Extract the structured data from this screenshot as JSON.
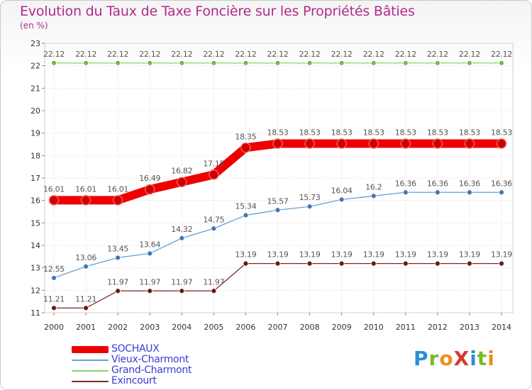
{
  "header": {
    "title": "Evolution du Taux de Taxe Foncière sur les Propriétés Bâties",
    "unit": "(en %)"
  },
  "brand": {
    "text": "ProXiti",
    "letters": [
      "P",
      "r",
      "o",
      "X",
      "i",
      "t",
      "i"
    ],
    "letter_colors": [
      "#2b8fd6",
      "#7ab82a",
      "#f08c1c",
      "#d43c2c",
      "#2b8fd6",
      "#7ab82a",
      "#f08c1c"
    ]
  },
  "colors": {
    "label_text": "#555555",
    "axis_text": "#333333",
    "grid": "#d9d9d9"
  },
  "chart_data": {
    "type": "line",
    "title": "Evolution du Taux de Taxe Foncière sur les Propriétés Bâties",
    "ylabel": "(en %)",
    "xlabel": "",
    "ylim": [
      11,
      23
    ],
    "yticks": [
      11,
      12,
      13,
      14,
      15,
      16,
      17,
      18,
      19,
      20,
      21,
      22,
      23
    ],
    "grid": true,
    "legend_position": "bottom-left",
    "x": [
      "2000",
      "2001",
      "2002",
      "2003",
      "2004",
      "2005",
      "2006",
      "2007",
      "2008",
      "2009",
      "2010",
      "2011",
      "2012",
      "2013",
      "2014"
    ],
    "series": [
      {
        "name": "SOCHAUX",
        "color": "#ee0000",
        "marker_color": "#cc0000",
        "weight": "heavy",
        "values": [
          16.01,
          16.01,
          16.01,
          16.49,
          16.82,
          17.15,
          18.35,
          18.53,
          18.53,
          18.53,
          18.53,
          18.53,
          18.53,
          18.53,
          18.53
        ],
        "labels": [
          "16.01",
          "16.01",
          "16.01",
          "16.49",
          "16.82",
          "17.15",
          "18.35",
          "18.53",
          "18.53",
          "18.53",
          "18.53",
          "18.53",
          "18.53",
          "18.53",
          "18.53"
        ]
      },
      {
        "name": "Vieux-Charmont",
        "color": "#6a9fd0",
        "marker_color": "#3a78b8",
        "weight": "thin",
        "values": [
          12.55,
          13.06,
          13.45,
          13.64,
          14.32,
          14.75,
          15.34,
          15.57,
          15.73,
          16.04,
          16.2,
          16.36,
          16.36,
          16.36,
          16.36
        ],
        "labels": [
          "12.55",
          "13.06",
          "13.45",
          "13.64",
          "14.32",
          "14.75",
          "15.34",
          "15.57",
          "15.73",
          "16.04",
          "16.2",
          "16.36",
          "16.36",
          "16.36",
          "16.36"
        ]
      },
      {
        "name": "Grand-Charmont",
        "color": "#8fd16a",
        "marker_color": "#6bbf3f",
        "weight": "thin",
        "values": [
          22.12,
          22.12,
          22.12,
          22.12,
          22.12,
          22.12,
          22.12,
          22.12,
          22.12,
          22.12,
          22.12,
          22.12,
          22.12,
          22.12,
          22.12
        ],
        "labels": [
          "22.12",
          "22.12",
          "22.12",
          "22.12",
          "22.12",
          "22.12",
          "22.12",
          "22.12",
          "22.12",
          "22.12",
          "22.12",
          "22.12",
          "22.12",
          "22.12",
          "22.12"
        ]
      },
      {
        "name": "Exincourt",
        "color": "#7a2a2a",
        "marker_color": "#6a1818",
        "weight": "thin",
        "values": [
          11.21,
          11.21,
          11.97,
          11.97,
          11.97,
          11.97,
          13.19,
          13.19,
          13.19,
          13.19,
          13.19,
          13.19,
          13.19,
          13.19,
          13.19
        ],
        "labels": [
          "11.21",
          "11.21",
          "11.97",
          "11.97",
          "11.97",
          "11.97",
          "13.19",
          "13.19",
          "13.19",
          "13.19",
          "13.19",
          "13.19",
          "13.19",
          "13.19",
          "13.19"
        ]
      }
    ]
  }
}
